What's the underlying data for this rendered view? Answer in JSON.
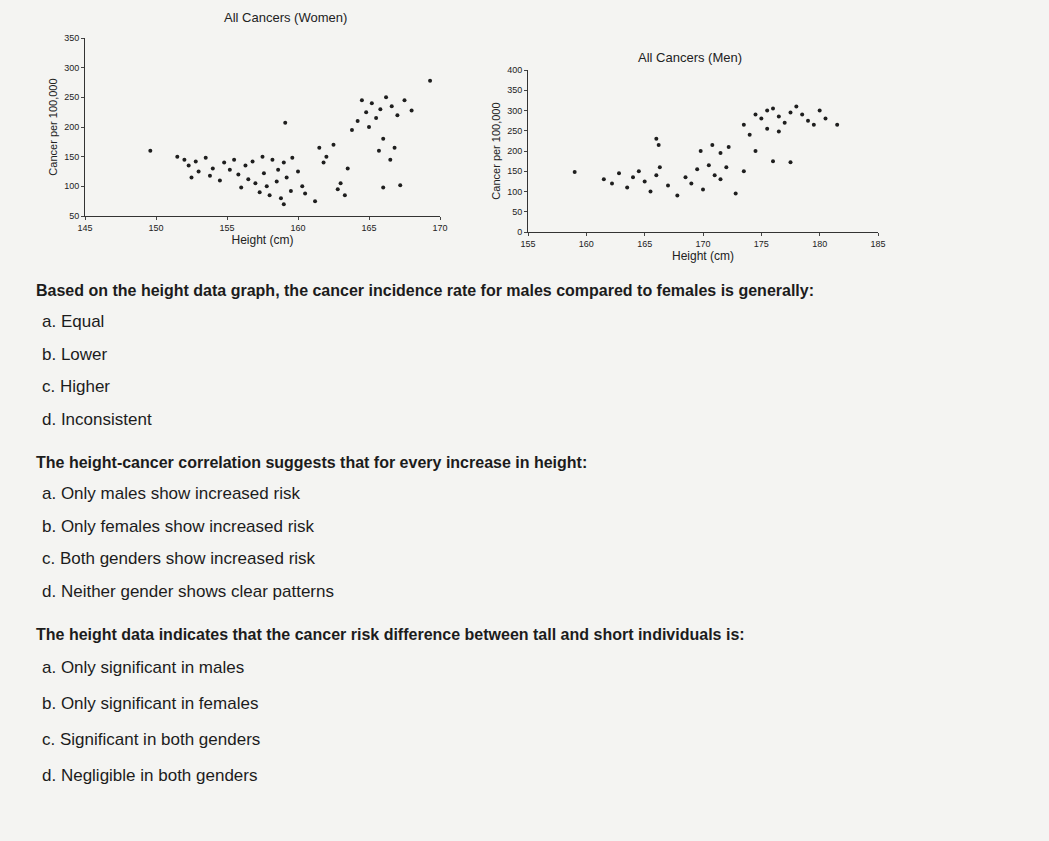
{
  "chart_data": [
    {
      "type": "scatter",
      "title": "All Cancers (Women)",
      "x_label": "Height (cm)",
      "y_label": "Cancer per 100,000",
      "xlim": [
        145,
        170
      ],
      "xticks": [
        145,
        150,
        155,
        160,
        165,
        170
      ],
      "ylim": [
        50,
        350
      ],
      "yticks": [
        50,
        100,
        150,
        200,
        250,
        300,
        350
      ],
      "grid": false,
      "color": "#1e1e1e",
      "marker": "circle",
      "x": [
        149.6,
        151.5,
        152.0,
        152.8,
        153.5,
        152.3,
        153.0,
        154.0,
        154.8,
        155.5,
        155.2,
        153.8,
        152.5,
        154.5,
        155.8,
        156.3,
        156.8,
        157.5,
        158.2,
        159.0,
        159.6,
        156.5,
        157.0,
        157.8,
        158.5,
        159.2,
        160.0,
        157.3,
        158.0,
        158.8,
        159.5,
        160.3,
        157.6,
        158.6,
        156.0,
        159.0,
        160.5,
        161.2,
        161.8,
        162.0,
        161.5,
        162.5,
        162.8,
        163.3,
        163.0,
        159.1,
        163.8,
        164.2,
        164.8,
        165.2,
        165.5,
        165.8,
        166.2,
        166.6,
        167.0,
        164.5,
        165.0,
        166.0,
        165.7,
        166.5,
        166.8,
        166.0,
        167.2,
        169.3,
        163.5,
        167.5,
        168.0
      ],
      "values": [
        160,
        150,
        145,
        142,
        148,
        135,
        125,
        130,
        140,
        145,
        128,
        118,
        115,
        110,
        120,
        135,
        142,
        150,
        145,
        140,
        148,
        112,
        105,
        100,
        108,
        115,
        125,
        90,
        85,
        80,
        92,
        100,
        122,
        128,
        98,
        70,
        88,
        75,
        140,
        150,
        165,
        170,
        95,
        85,
        105,
        207,
        195,
        210,
        225,
        240,
        215,
        230,
        250,
        235,
        220,
        245,
        200,
        180,
        160,
        145,
        165,
        98,
        102,
        278,
        130,
        245,
        228
      ]
    },
    {
      "type": "scatter",
      "title": "All Cancers (Men)",
      "x_label": "Height (cm)",
      "y_label": "Cancer per 100,000",
      "xlim": [
        155,
        185
      ],
      "xticks": [
        155,
        160,
        165,
        170,
        175,
        180,
        185
      ],
      "ylim": [
        0,
        400
      ],
      "yticks": [
        0,
        50,
        100,
        150,
        200,
        250,
        300,
        350,
        400
      ],
      "grid": false,
      "color": "#1e1e1e",
      "marker": "circle",
      "x": [
        159.0,
        161.5,
        162.2,
        162.8,
        163.5,
        164.0,
        164.5,
        165.0,
        165.5,
        166.0,
        166.3,
        166.0,
        166.2,
        167.0,
        167.8,
        168.5,
        169.0,
        169.5,
        170.0,
        170.5,
        171.0,
        171.5,
        172.0,
        172.8,
        173.5,
        169.8,
        170.8,
        171.5,
        172.2,
        174.5,
        176.0,
        177.5,
        173.5,
        174.5,
        175.0,
        175.5,
        176.0,
        176.5,
        177.0,
        177.5,
        178.0,
        178.5,
        179.0,
        179.5,
        180.0,
        180.5,
        181.5,
        174.0,
        175.5,
        176.5
      ],
      "values": [
        148,
        130,
        120,
        145,
        110,
        135,
        150,
        125,
        100,
        140,
        160,
        230,
        215,
        115,
        90,
        135,
        120,
        155,
        105,
        165,
        140,
        130,
        160,
        95,
        150,
        200,
        215,
        195,
        210,
        200,
        175,
        172,
        265,
        290,
        280,
        300,
        305,
        285,
        270,
        295,
        310,
        290,
        275,
        265,
        300,
        280,
        265,
        240,
        255,
        248
      ]
    }
  ],
  "questions": [
    {
      "text": "Based on the height data graph, the cancer incidence rate for males compared to females is generally:",
      "options": [
        "a. Equal",
        "b. Lower",
        "c. Higher",
        "d. Inconsistent"
      ]
    },
    {
      "text": "The height-cancer correlation suggests that for every increase in height:",
      "options": [
        "a. Only males show increased risk",
        "b. Only females show increased risk",
        "c. Both genders show increased risk",
        "d. Neither gender shows clear patterns"
      ]
    },
    {
      "text": "The height data indicates that the cancer risk difference between tall and short individuals is:",
      "options": [
        "a. Only significant in males",
        "b. Only significant in females",
        "c. Significant in both genders",
        "d. Negligible in both genders"
      ]
    }
  ]
}
